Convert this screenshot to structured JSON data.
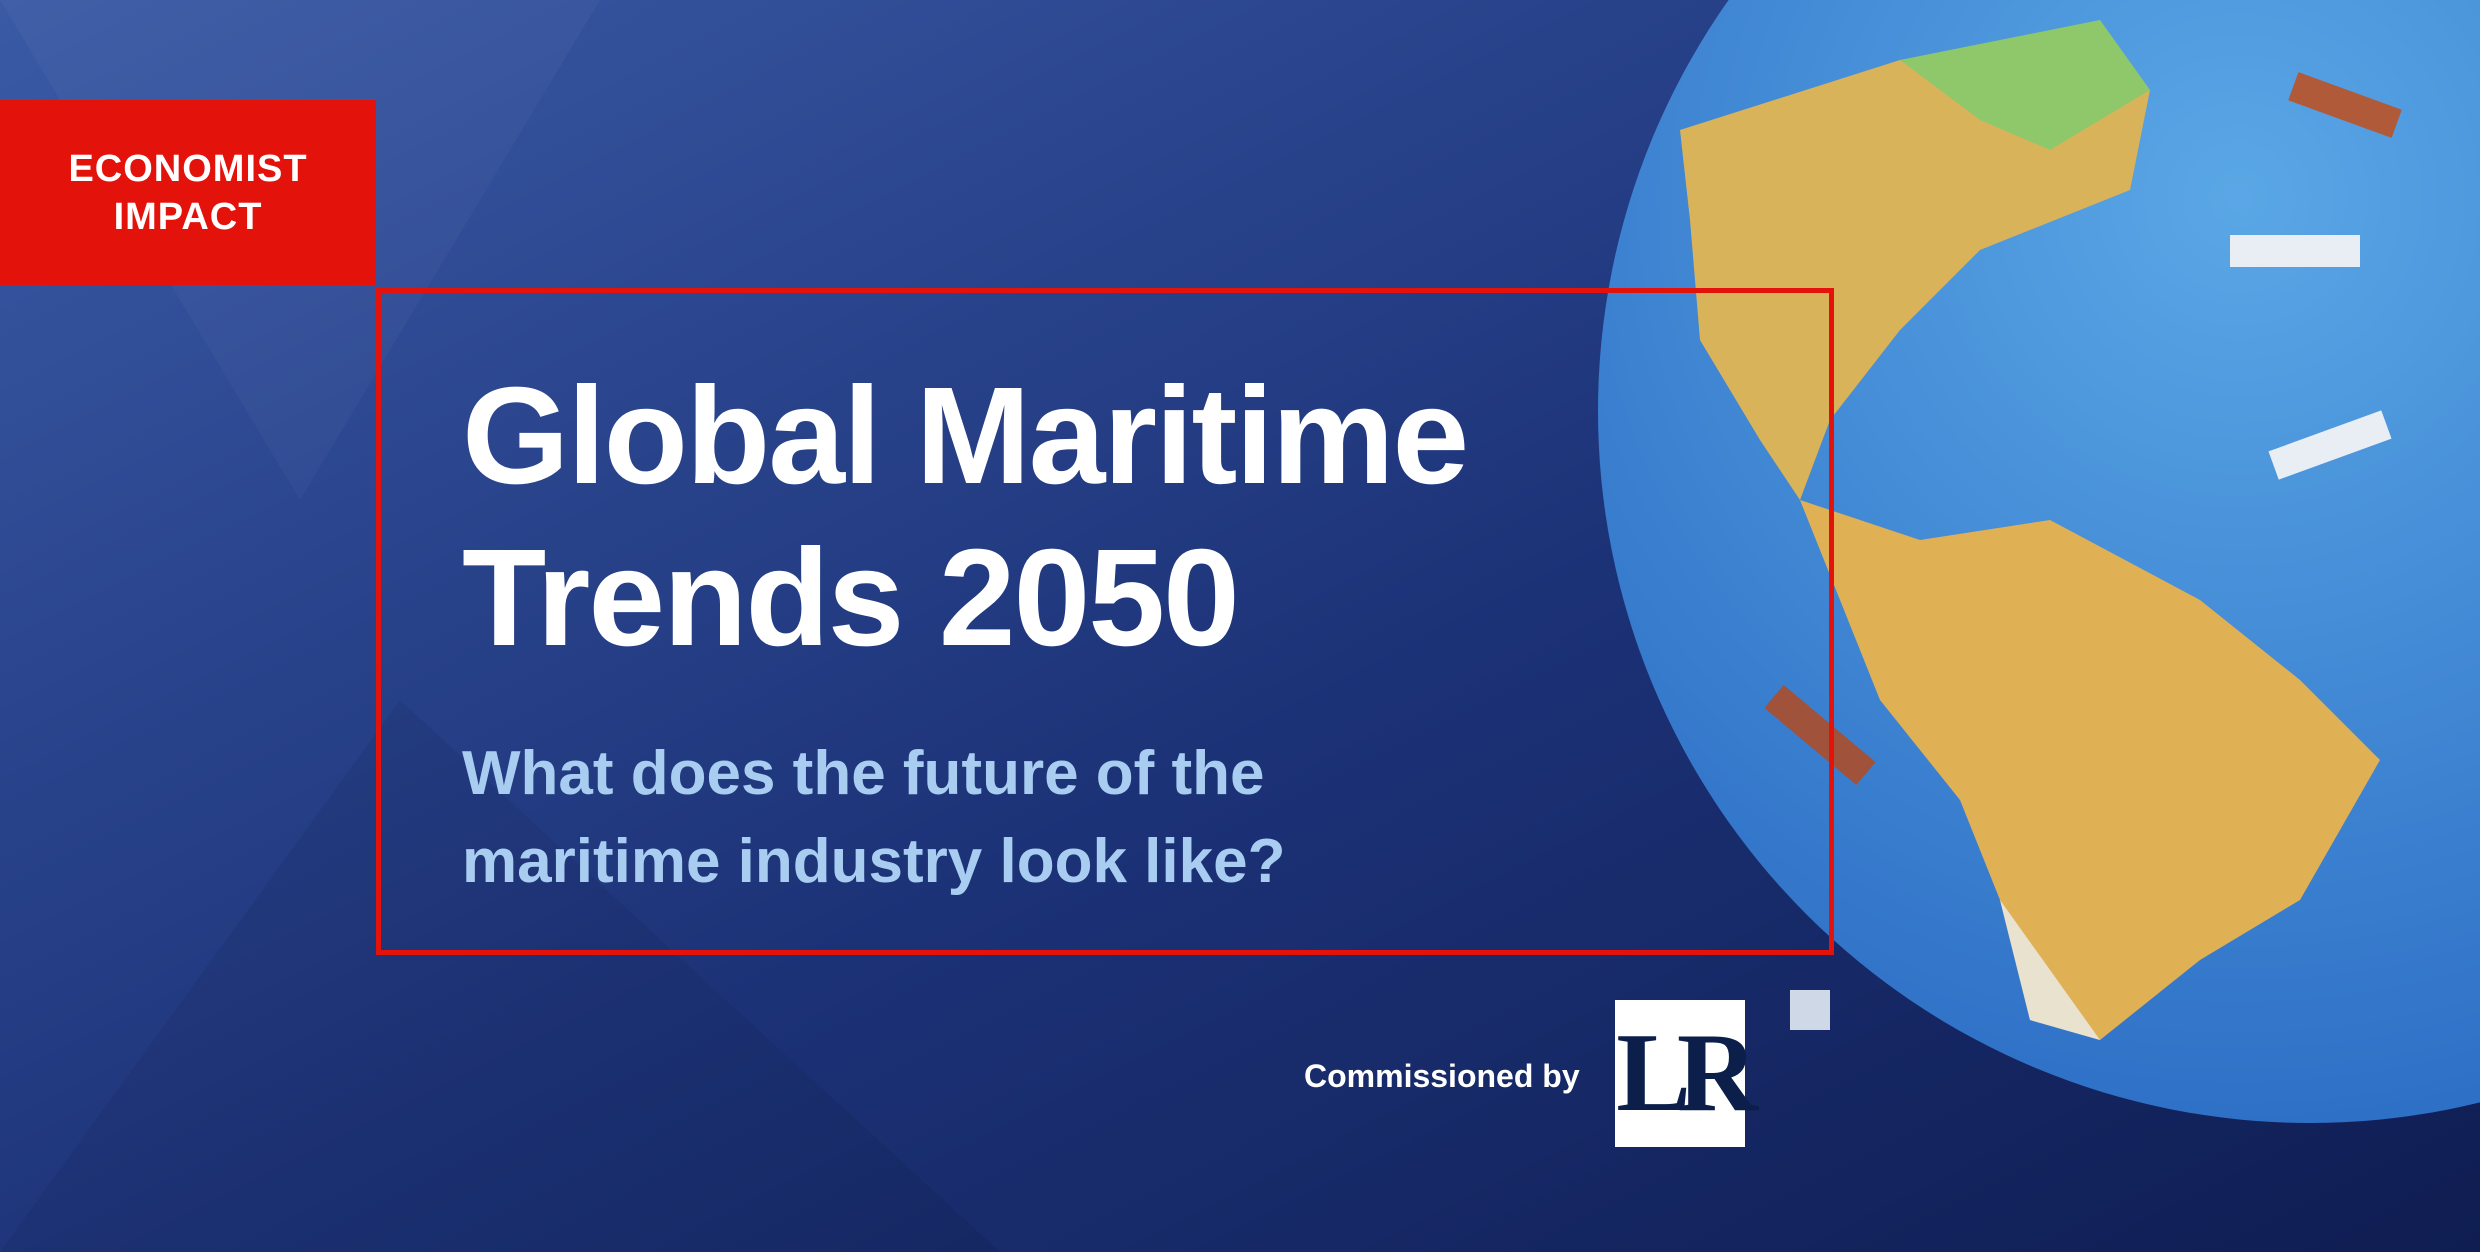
{
  "brand": {
    "lines": [
      "ECONOMIST",
      "IMPACT"
    ]
  },
  "title": {
    "lines": [
      "Global Maritime",
      "Trends 2050"
    ]
  },
  "subtitle": {
    "lines": [
      "What does the future of the",
      "maritime industry look like?"
    ]
  },
  "commissioned": "Commissioned by",
  "logo": "LR"
}
